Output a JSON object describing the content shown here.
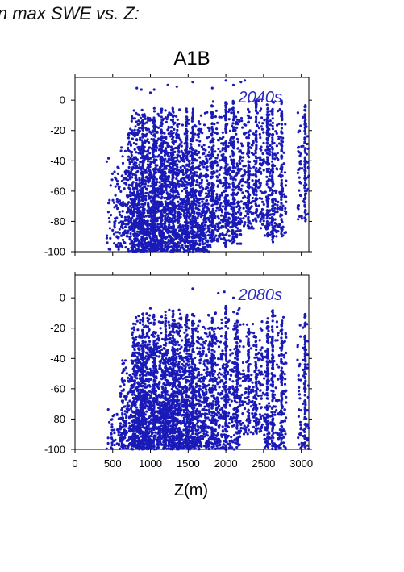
{
  "figure": {
    "title": "in max SWE vs. Z:",
    "scenario": "A1B",
    "xlabel": "Z(m)"
  },
  "colors": {
    "points": "#1a1ab8",
    "decade_label": "#2b2bc0",
    "axis": "#000000"
  },
  "chart_data": [
    {
      "type": "scatter",
      "label": "2040s",
      "xlim": [
        0,
        3100
      ],
      "ylim": [
        -100,
        15
      ],
      "x_ticks": [
        0,
        500,
        1000,
        1500,
        2000,
        2500,
        3000
      ],
      "y_ticks": [
        0,
        -20,
        -40,
        -60,
        -80,
        -100
      ],
      "y_tick_labels": [
        "0",
        "-20",
        "-40",
        "-60",
        "-80",
        "-100"
      ],
      "show_x_tick_labels": false,
      "bands": [
        {
          "x": [
            420,
            500
          ],
          "y": [
            -100,
            -35
          ],
          "n": 20
        },
        {
          "x": [
            500,
            700
          ],
          "y": [
            -100,
            -30
          ],
          "n": 120
        },
        {
          "x": [
            700,
            1000
          ],
          "y": [
            -100,
            -5
          ],
          "n": 700
        },
        {
          "x": [
            1000,
            1400
          ],
          "y": [
            -100,
            -5
          ],
          "n": 900
        },
        {
          "x": [
            1400,
            1800
          ],
          "y": [
            -100,
            -5
          ],
          "n": 650
        },
        {
          "x": [
            1800,
            2200
          ],
          "y": [
            -95,
            0
          ],
          "n": 450
        },
        {
          "x": [
            2200,
            2500
          ],
          "y": [
            -85,
            0
          ],
          "n": 220
        },
        {
          "x": [
            2500,
            2800
          ],
          "y": [
            -90,
            0
          ],
          "n": 200
        },
        {
          "x": [
            2950,
            3100
          ],
          "y": [
            -80,
            2
          ],
          "n": 70
        }
      ],
      "columns": [
        {
          "x": 900,
          "y": [
            -100,
            -5
          ]
        },
        {
          "x": 1050,
          "y": [
            -100,
            -5
          ]
        },
        {
          "x": 1150,
          "y": [
            -100,
            -5
          ]
        },
        {
          "x": 1300,
          "y": [
            -100,
            -5
          ]
        },
        {
          "x": 1480,
          "y": [
            -100,
            -5
          ]
        },
        {
          "x": 1560,
          "y": [
            -100,
            -5
          ]
        },
        {
          "x": 1820,
          "y": [
            -95,
            -3
          ]
        },
        {
          "x": 2000,
          "y": [
            -100,
            0
          ]
        },
        {
          "x": 2100,
          "y": [
            -95,
            0
          ]
        },
        {
          "x": 2300,
          "y": [
            -85,
            0
          ]
        },
        {
          "x": 2400,
          "y": [
            -75,
            0
          ]
        },
        {
          "x": 2550,
          "y": [
            -90,
            -3
          ]
        },
        {
          "x": 2620,
          "y": [
            -95,
            0
          ]
        },
        {
          "x": 2740,
          "y": [
            -90,
            0
          ]
        },
        {
          "x": 3050,
          "y": [
            -80,
            2
          ]
        }
      ],
      "outliers": [
        {
          "x": 820,
          "y": 8
        },
        {
          "x": 880,
          "y": 7
        },
        {
          "x": 1000,
          "y": 5
        },
        {
          "x": 1050,
          "y": 7
        },
        {
          "x": 1230,
          "y": 10
        },
        {
          "x": 1350,
          "y": 9
        },
        {
          "x": 1560,
          "y": 12
        },
        {
          "x": 1820,
          "y": 8
        },
        {
          "x": 2000,
          "y": 13
        },
        {
          "x": 2200,
          "y": 12
        },
        {
          "x": 2250,
          "y": 13
        },
        {
          "x": 2100,
          "y": 10
        }
      ]
    },
    {
      "type": "scatter",
      "label": "2080s",
      "xlim": [
        0,
        3100
      ],
      "ylim": [
        -100,
        15
      ],
      "x_ticks": [
        0,
        500,
        1000,
        1500,
        2000,
        2500,
        3000
      ],
      "x_tick_labels": [
        "0",
        "500",
        "1000",
        "1500",
        "2000",
        "2500",
        "3000"
      ],
      "y_ticks": [
        0,
        -20,
        -40,
        -60,
        -80,
        -100
      ],
      "y_tick_labels": [
        "0",
        "-20",
        "-40",
        "-60",
        "-80",
        "-100"
      ],
      "show_x_tick_labels": true,
      "bands": [
        {
          "x": [
            420,
            600
          ],
          "y": [
            -100,
            -70
          ],
          "n": 40
        },
        {
          "x": [
            600,
            750
          ],
          "y": [
            -100,
            -40
          ],
          "n": 150
        },
        {
          "x": [
            750,
            1000
          ],
          "y": [
            -100,
            -10
          ],
          "n": 700
        },
        {
          "x": [
            1000,
            1400
          ],
          "y": [
            -100,
            -10
          ],
          "n": 900
        },
        {
          "x": [
            1400,
            1800
          ],
          "y": [
            -100,
            -10
          ],
          "n": 650
        },
        {
          "x": [
            1800,
            2200
          ],
          "y": [
            -100,
            -5
          ],
          "n": 420
        },
        {
          "x": [
            2200,
            2500
          ],
          "y": [
            -90,
            -15
          ],
          "n": 180
        },
        {
          "x": [
            2500,
            2800
          ],
          "y": [
            -100,
            -8
          ],
          "n": 200
        },
        {
          "x": [
            2950,
            3100
          ],
          "y": [
            -100,
            -8
          ],
          "n": 70
        }
      ],
      "columns": [
        {
          "x": 900,
          "y": [
            -100,
            -10
          ]
        },
        {
          "x": 1050,
          "y": [
            -100,
            -10
          ]
        },
        {
          "x": 1200,
          "y": [
            -100,
            -8
          ]
        },
        {
          "x": 1300,
          "y": [
            -100,
            -8
          ]
        },
        {
          "x": 1480,
          "y": [
            -100,
            -10
          ]
        },
        {
          "x": 1560,
          "y": [
            -100,
            -10
          ]
        },
        {
          "x": 1820,
          "y": [
            -100,
            -12
          ]
        },
        {
          "x": 2000,
          "y": [
            -100,
            -5
          ]
        },
        {
          "x": 2150,
          "y": [
            -95,
            -10
          ]
        },
        {
          "x": 2300,
          "y": [
            -85,
            -20
          ]
        },
        {
          "x": 2400,
          "y": [
            -90,
            -25
          ]
        },
        {
          "x": 2550,
          "y": [
            -100,
            -12
          ]
        },
        {
          "x": 2620,
          "y": [
            -100,
            -8
          ]
        },
        {
          "x": 2740,
          "y": [
            -95,
            -15
          ]
        },
        {
          "x": 3050,
          "y": [
            -100,
            -8
          ]
        }
      ],
      "outliers": [
        {
          "x": 1560,
          "y": 6
        },
        {
          "x": 1900,
          "y": 3
        },
        {
          "x": 1980,
          "y": 4
        },
        {
          "x": 2100,
          "y": 0
        },
        {
          "x": 1000,
          "y": -7
        },
        {
          "x": 1250,
          "y": -8
        },
        {
          "x": 1380,
          "y": -8
        }
      ]
    }
  ]
}
